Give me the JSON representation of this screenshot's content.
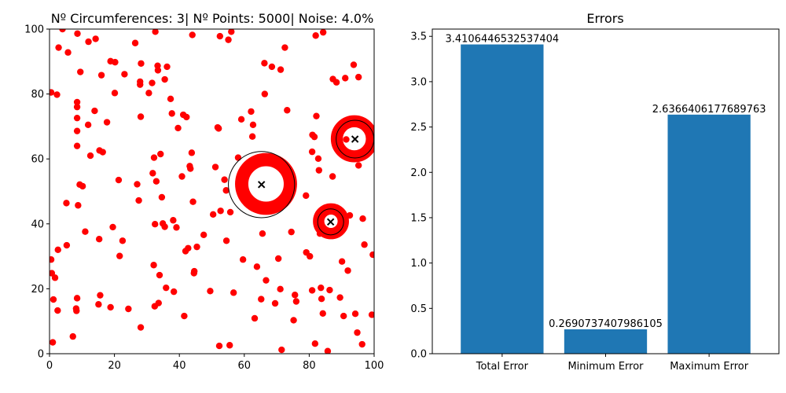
{
  "chart_data": [
    {
      "type": "scatter",
      "title": "Nº Circumferences: 3| Nº Points: 5000| Noise: 4.0%",
      "xlim": [
        0,
        100
      ],
      "ylim": [
        0,
        100
      ],
      "xticks": [
        "0",
        "20",
        "40",
        "60",
        "80",
        "100"
      ],
      "yticks": [
        "0",
        "20",
        "40",
        "60",
        "80",
        "100"
      ],
      "grid": false,
      "point_color": "#ff0000",
      "noise_points": [
        [
          0.5,
          29
        ],
        [
          0.7,
          24.8
        ],
        [
          1,
          3.5
        ],
        [
          1.2,
          16.7
        ],
        [
          1.7,
          23.4
        ],
        [
          2.3,
          79.8
        ],
        [
          2.5,
          13.3
        ],
        [
          2.6,
          32
        ],
        [
          2.8,
          94.3
        ],
        [
          4,
          100
        ],
        [
          5.2,
          46.4
        ],
        [
          5.3,
          33.4
        ],
        [
          5.7,
          92.8
        ],
        [
          7.2,
          5.3
        ],
        [
          8.2,
          13.9
        ],
        [
          8.3,
          13.2
        ],
        [
          8.5,
          17.1
        ],
        [
          8.5,
          76
        ],
        [
          8.5,
          77.5
        ],
        [
          8.5,
          72.6
        ],
        [
          8.5,
          68.6
        ],
        [
          8.5,
          64
        ],
        [
          8.6,
          98.6
        ],
        [
          8.8,
          45.7
        ],
        [
          9.3,
          52.1
        ],
        [
          9.5,
          86.8
        ],
        [
          10.2,
          51.6
        ],
        [
          11,
          37.6
        ],
        [
          11.9,
          70.5
        ],
        [
          12,
          96.1
        ],
        [
          12.6,
          61
        ],
        [
          13.9,
          74.8
        ],
        [
          14.2,
          97
        ],
        [
          15.1,
          15.2
        ],
        [
          15.3,
          35.3
        ],
        [
          15.4,
          62.6
        ],
        [
          15.6,
          18
        ],
        [
          16,
          85.8
        ],
        [
          16.4,
          62.1
        ],
        [
          17.7,
          71.3
        ],
        [
          18.8,
          90.1
        ],
        [
          18.8,
          14.3
        ],
        [
          19.5,
          39
        ],
        [
          20.1,
          80.3
        ],
        [
          20.2,
          89.8
        ],
        [
          21.3,
          53.5
        ],
        [
          21.6,
          30.1
        ],
        [
          22.5,
          34.8
        ],
        [
          23.1,
          86.1
        ],
        [
          24.3,
          13.8
        ],
        [
          26.4,
          95.7
        ],
        [
          27,
          52.2
        ],
        [
          27.5,
          47.2
        ],
        [
          27.9,
          82.9
        ],
        [
          27.9,
          83.8
        ],
        [
          28.1,
          8.1
        ],
        [
          28.1,
          73
        ],
        [
          28.2,
          89.4
        ],
        [
          30.6,
          80.3
        ],
        [
          31.6,
          83.4
        ],
        [
          31.8,
          55.6
        ],
        [
          32.2,
          60.4
        ],
        [
          32.1,
          27.3
        ],
        [
          32.4,
          14.6
        ],
        [
          32.5,
          39.9
        ],
        [
          32.6,
          99.2
        ],
        [
          32.9,
          53.1
        ],
        [
          33.3,
          88.7
        ],
        [
          33.4,
          87.3
        ],
        [
          33.6,
          15.6
        ],
        [
          33.9,
          24.2
        ],
        [
          34.2,
          61.5
        ],
        [
          34.6,
          48.2
        ],
        [
          34.9,
          40.1
        ],
        [
          35.5,
          39.1
        ],
        [
          35.5,
          84.5
        ],
        [
          35.9,
          20.3
        ],
        [
          36.2,
          88.4
        ],
        [
          37.3,
          78.5
        ],
        [
          37.7,
          74
        ],
        [
          38.1,
          41.1
        ],
        [
          38.3,
          19.1
        ],
        [
          39.1,
          38.9
        ],
        [
          39.6,
          69.5
        ],
        [
          40.8,
          54.6
        ],
        [
          41.2,
          73.6
        ],
        [
          41.5,
          11.6
        ],
        [
          41.9,
          31.6
        ],
        [
          42.2,
          72.9
        ],
        [
          42.7,
          32.5
        ],
        [
          43.2,
          57.8
        ],
        [
          43.4,
          57
        ],
        [
          43.8,
          61.9
        ],
        [
          44,
          98.2
        ],
        [
          44.2,
          46.8
        ],
        [
          44.5,
          24.8
        ],
        [
          44.6,
          25.4
        ],
        [
          45.4,
          32.9
        ],
        [
          47.5,
          36.6
        ],
        [
          49.5,
          19.3
        ],
        [
          50.4,
          42.9
        ],
        [
          51.1,
          57.5
        ],
        [
          51.8,
          69.7
        ],
        [
          52.1,
          69.4
        ],
        [
          52.3,
          2.4
        ],
        [
          52.5,
          97.8
        ],
        [
          52.7,
          44
        ],
        [
          53.9,
          53.6
        ],
        [
          54.4,
          50.3
        ],
        [
          54.5,
          34.8
        ],
        [
          55.1,
          96.7
        ],
        [
          55.5,
          2.6
        ],
        [
          55.7,
          43.6
        ],
        [
          56,
          99.2
        ],
        [
          56.7,
          18.8
        ],
        [
          58.1,
          60.4
        ],
        [
          59.1,
          72.2
        ],
        [
          59.6,
          29
        ],
        [
          62.1,
          74.6
        ],
        [
          62.5,
          66.9
        ],
        [
          62.7,
          70.5
        ],
        [
          63.2,
          10.9
        ],
        [
          63.9,
          26.8
        ],
        [
          65.2,
          16.8
        ],
        [
          65.6,
          37
        ],
        [
          66.2,
          89.5
        ],
        [
          66.3,
          80
        ],
        [
          66.7,
          22.6
        ],
        [
          68.5,
          88.4
        ],
        [
          69.5,
          15.5
        ],
        [
          70.5,
          29.3
        ],
        [
          71.1,
          19.9
        ],
        [
          71.2,
          87.5
        ],
        [
          71.5,
          1.2
        ],
        [
          72.5,
          94.3
        ],
        [
          73.2,
          75
        ],
        [
          74.5,
          37.5
        ],
        [
          75.2,
          10.3
        ],
        [
          75.6,
          18.1
        ],
        [
          76,
          16.1
        ],
        [
          79,
          48.7
        ],
        [
          79.1,
          31.2
        ],
        [
          80.2,
          30
        ],
        [
          80.9,
          19.5
        ],
        [
          80.9,
          62.2
        ],
        [
          81,
          67.4
        ],
        [
          81.6,
          66.8
        ],
        [
          81.8,
          3.1
        ],
        [
          82,
          98
        ],
        [
          82.2,
          73.2
        ],
        [
          82.8,
          60.1
        ],
        [
          83.3,
          37
        ],
        [
          83.6,
          20.3
        ],
        [
          83.8,
          16.9
        ],
        [
          84.2,
          12.4
        ],
        [
          84.3,
          99
        ],
        [
          85.7,
          0.8
        ],
        [
          86.3,
          19.6
        ],
        [
          87.2,
          54.6
        ],
        [
          87.3,
          84.6
        ],
        [
          88.4,
          83.6
        ],
        [
          89.5,
          17.3
        ],
        [
          90.1,
          28.4
        ],
        [
          90.6,
          11.6
        ],
        [
          91.1,
          84.9
        ],
        [
          91.9,
          25.6
        ],
        [
          92.5,
          42.6
        ],
        [
          93.7,
          89
        ],
        [
          94.2,
          12.3
        ],
        [
          94.8,
          6.5
        ],
        [
          95.2,
          58
        ],
        [
          95.2,
          85.2
        ],
        [
          96.3,
          2.9
        ],
        [
          96.5,
          41.6
        ],
        [
          97,
          33.6
        ],
        [
          99.3,
          12
        ],
        [
          99.6,
          30.5
        ],
        [
          0.5,
          80.5
        ],
        [
          91.4,
          66
        ],
        [
          83,
          56.5
        ]
      ],
      "circles": [
        {
          "center": [
            66.7,
            52.3
          ],
          "radius": 7.5,
          "thickness": 1.2,
          "fit_center": [
            65.3,
            52.1
          ],
          "fit_radius": 10.2
        },
        {
          "center": [
            93.9,
            66.2
          ],
          "radius": 5.4,
          "thickness": 1.0,
          "fit_center": [
            94.1,
            66.1
          ],
          "fit_radius": 5.8
        },
        {
          "center": [
            86.7,
            40.8
          ],
          "radius": 3.8,
          "thickness": 0.9,
          "fit_center": [
            86.6,
            40.6
          ],
          "fit_radius": 4.0
        }
      ]
    },
    {
      "type": "bar",
      "title": "Errors",
      "categories": [
        "Total Error",
        "Minimum Error",
        "Maximum Error"
      ],
      "values": [
        3.4106446532537404,
        0.2690737407986105,
        2.6366406177689763
      ],
      "data_labels": [
        "3.4106446532537404",
        "0.2690737407986105",
        "2.6366406177689763"
      ],
      "ylim": [
        0,
        3.58
      ],
      "yticks": [
        "0.0",
        "0.5",
        "1.0",
        "1.5",
        "2.0",
        "2.5",
        "3.0",
        "3.5"
      ],
      "bar_color": "#1f77b4",
      "grid": false
    }
  ]
}
